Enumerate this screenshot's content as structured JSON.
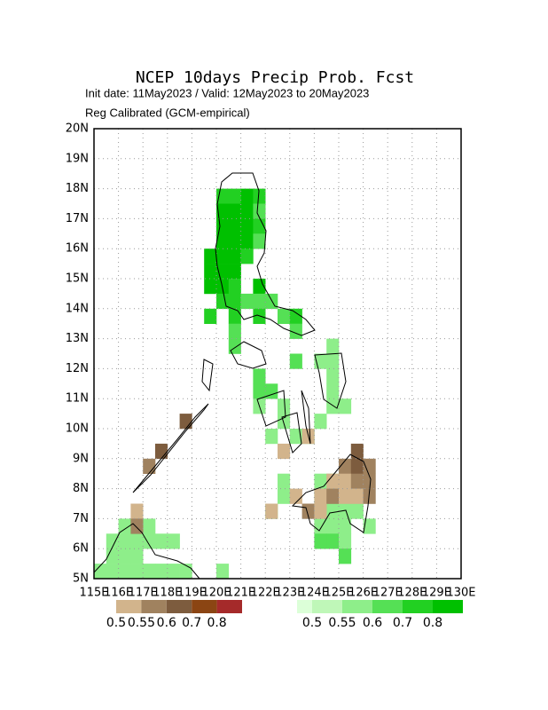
{
  "title": "NCEP 10days Precip Prob. Fcst",
  "subtitle": "Init date: 11May2023 / Valid: 12May2023 to 20May2023",
  "note": "Reg Calibrated (GCM-empirical)",
  "map": {
    "xlim": [
      115,
      130
    ],
    "ylim": [
      5,
      20
    ],
    "cell_size": 0.5,
    "grid": true,
    "xticks": [
      {
        "value": 115,
        "label": "115E"
      },
      {
        "value": 116,
        "label": "116E"
      },
      {
        "value": 117,
        "label": "117E"
      },
      {
        "value": 118,
        "label": "118E"
      },
      {
        "value": 119,
        "label": "119E"
      },
      {
        "value": 120,
        "label": "120E"
      },
      {
        "value": 121,
        "label": "121E"
      },
      {
        "value": 122,
        "label": "122E"
      },
      {
        "value": 123,
        "label": "123E"
      },
      {
        "value": 124,
        "label": "124E"
      },
      {
        "value": 125,
        "label": "125E"
      },
      {
        "value": 126,
        "label": "126E"
      },
      {
        "value": 127,
        "label": "127E"
      },
      {
        "value": 128,
        "label": "128E"
      },
      {
        "value": 129,
        "label": "129E"
      },
      {
        "value": 130,
        "label": "130E"
      }
    ],
    "yticks": [
      {
        "value": 5,
        "label": "5N"
      },
      {
        "value": 6,
        "label": "6N"
      },
      {
        "value": 7,
        "label": "7N"
      },
      {
        "value": 8,
        "label": "8N"
      },
      {
        "value": 9,
        "label": "9N"
      },
      {
        "value": 10,
        "label": "10N"
      },
      {
        "value": 11,
        "label": "11N"
      },
      {
        "value": 12,
        "label": "12N"
      },
      {
        "value": 13,
        "label": "13N"
      },
      {
        "value": 14,
        "label": "14N"
      },
      {
        "value": 15,
        "label": "15N"
      },
      {
        "value": 16,
        "label": "16N"
      },
      {
        "value": 17,
        "label": "17N"
      },
      {
        "value": 18,
        "label": "18N"
      },
      {
        "value": 19,
        "label": "19N"
      },
      {
        "value": 20,
        "label": "20N"
      }
    ]
  },
  "legend_dry": {
    "colors": [
      "#d2b48c",
      "#a0825f",
      "#7d5c3e",
      "#8b4513",
      "#a52a2a"
    ],
    "labels": [
      {
        "value": 0.5,
        "label": "0.5"
      },
      0.55,
      0.6,
      0.7,
      0.8
    ]
  },
  "legend_wet": {
    "colors": [
      "#dcffd8",
      "#bff7b8",
      "#8eee8a",
      "#55e055",
      "#22d022",
      "#00c000"
    ],
    "labels": [
      {
        "value": 0.5,
        "label": "0.5"
      },
      0.55,
      0.6,
      0.7,
      0.8
    ]
  },
  "wet_cells": [
    [
      120,
      17.5,
      0.75
    ],
    [
      120.5,
      17.5,
      0.75
    ],
    [
      121,
      17.5,
      0.85
    ],
    [
      121.5,
      17.5,
      0.75
    ],
    [
      120,
      17,
      0.85
    ],
    [
      120.5,
      17,
      0.85
    ],
    [
      121,
      17,
      0.85
    ],
    [
      121.5,
      17,
      0.65
    ],
    [
      120,
      16.5,
      0.85
    ],
    [
      120.5,
      16.5,
      0.85
    ],
    [
      121,
      16.5,
      0.85
    ],
    [
      121.5,
      16.5,
      0.75
    ],
    [
      120,
      16,
      0.85
    ],
    [
      120.5,
      16,
      0.85
    ],
    [
      121,
      16,
      0.85
    ],
    [
      121.5,
      16,
      0.65
    ],
    [
      119.5,
      15.5,
      0.85
    ],
    [
      120,
      15.5,
      0.85
    ],
    [
      120.5,
      15.5,
      0.85
    ],
    [
      121,
      15.5,
      0.75
    ],
    [
      119.5,
      15,
      0.85
    ],
    [
      120,
      15,
      0.85
    ],
    [
      120.5,
      15,
      0.85
    ],
    [
      119.5,
      14.5,
      0.85
    ],
    [
      120,
      14.5,
      0.85
    ],
    [
      120.5,
      14.5,
      0.75
    ],
    [
      121.5,
      14.5,
      0.85
    ],
    [
      120,
      14,
      0.75
    ],
    [
      120.5,
      14,
      0.75
    ],
    [
      121,
      14,
      0.65
    ],
    [
      121.5,
      14,
      0.65
    ],
    [
      122,
      14,
      0.65
    ],
    [
      119.5,
      13.5,
      0.75
    ],
    [
      120.5,
      13.5,
      0.75
    ],
    [
      121.5,
      13.5,
      0.75
    ],
    [
      122.5,
      13.5,
      0.65
    ],
    [
      123,
      13.5,
      0.75
    ],
    [
      120.5,
      13,
      0.65
    ],
    [
      123,
      13,
      0.65
    ],
    [
      120.5,
      12.5,
      0.65
    ],
    [
      124.5,
      12.5,
      0.55
    ],
    [
      123,
      12,
      0.65
    ],
    [
      124,
      12,
      0.55
    ],
    [
      124.5,
      12,
      0.57
    ],
    [
      121.5,
      11.5,
      0.65
    ],
    [
      124.5,
      11.5,
      0.55
    ],
    [
      121.5,
      11,
      0.65
    ],
    [
      122,
      11,
      0.65
    ],
    [
      124.5,
      11,
      0.55
    ],
    [
      121.5,
      10.5,
      0.57
    ],
    [
      122.5,
      10.5,
      0.55
    ],
    [
      124.5,
      10.5,
      0.55
    ],
    [
      125,
      10.5,
      0.55
    ],
    [
      122.5,
      10,
      0.55
    ],
    [
      124,
      10,
      0.55
    ],
    [
      122,
      9.5,
      0.55
    ],
    [
      123,
      9.5,
      0.55
    ],
    [
      123.5,
      9.5,
      0.55
    ],
    [
      122.5,
      8,
      0.55
    ],
    [
      124,
      8,
      0.55
    ],
    [
      124.5,
      8,
      0.55
    ],
    [
      122.5,
      7.5,
      0.55
    ],
    [
      124,
      7.5,
      0.57
    ],
    [
      124.5,
      7.5,
      0.57
    ],
    [
      122,
      7,
      0.55
    ],
    [
      124,
      7,
      0.57
    ],
    [
      124.5,
      7,
      0.57
    ],
    [
      125,
      7,
      0.57
    ],
    [
      125.5,
      7,
      0.55
    ],
    [
      124,
      6.5,
      0.57
    ],
    [
      124.5,
      6.5,
      0.57
    ],
    [
      125,
      6.5,
      0.57
    ],
    [
      126,
      6.5,
      0.55
    ],
    [
      124,
      6,
      0.65
    ],
    [
      124.5,
      6,
      0.65
    ],
    [
      125,
      6,
      0.57
    ],
    [
      125,
      5.5,
      0.65
    ],
    [
      116,
      6.5,
      0.55
    ],
    [
      116.5,
      6.5,
      0.57
    ],
    [
      117,
      6.5,
      0.57
    ],
    [
      115.5,
      6,
      0.57
    ],
    [
      116,
      6,
      0.57
    ],
    [
      116.5,
      6,
      0.55
    ],
    [
      117,
      6,
      0.55
    ],
    [
      117.5,
      6,
      0.55
    ],
    [
      118,
      6,
      0.55
    ],
    [
      115.5,
      5.5,
      0.57
    ],
    [
      116,
      5.5,
      0.57
    ],
    [
      116.5,
      5.5,
      0.57
    ],
    [
      115,
      5,
      0.57
    ],
    [
      115.5,
      5,
      0.57
    ],
    [
      116,
      5,
      0.57
    ],
    [
      116.5,
      5,
      0.57
    ],
    [
      117,
      5,
      0.57
    ],
    [
      117.5,
      5,
      0.57
    ],
    [
      118,
      5,
      0.57
    ],
    [
      118.5,
      5,
      0.57
    ],
    [
      120,
      5,
      0.57
    ]
  ],
  "dry_cells": [
    [
      118.5,
      10,
      0.62
    ],
    [
      117.5,
      9,
      0.62
    ],
    [
      117,
      8.5,
      0.57
    ],
    [
      122.5,
      9,
      0.52
    ],
    [
      123.5,
      9.5,
      0.52
    ],
    [
      125.5,
      9,
      0.62
    ],
    [
      125,
      8.5,
      0.57
    ],
    [
      125.5,
      8.5,
      0.62
    ],
    [
      126,
      8.5,
      0.57
    ],
    [
      124.5,
      8,
      0.52
    ],
    [
      125,
      8,
      0.52
    ],
    [
      125.5,
      8,
      0.57
    ],
    [
      126,
      8,
      0.57
    ],
    [
      123,
      7.5,
      0.52
    ],
    [
      124,
      7.5,
      0.52
    ],
    [
      124.5,
      7.5,
      0.57
    ],
    [
      125,
      7.5,
      0.52
    ],
    [
      125.5,
      7.5,
      0.52
    ],
    [
      126,
      7.5,
      0.57
    ],
    [
      122,
      7,
      0.52
    ],
    [
      123.5,
      7,
      0.57
    ],
    [
      124,
      7,
      0.52
    ],
    [
      116.5,
      7,
      0.52
    ],
    [
      116.5,
      6.5,
      0.57
    ]
  ]
}
